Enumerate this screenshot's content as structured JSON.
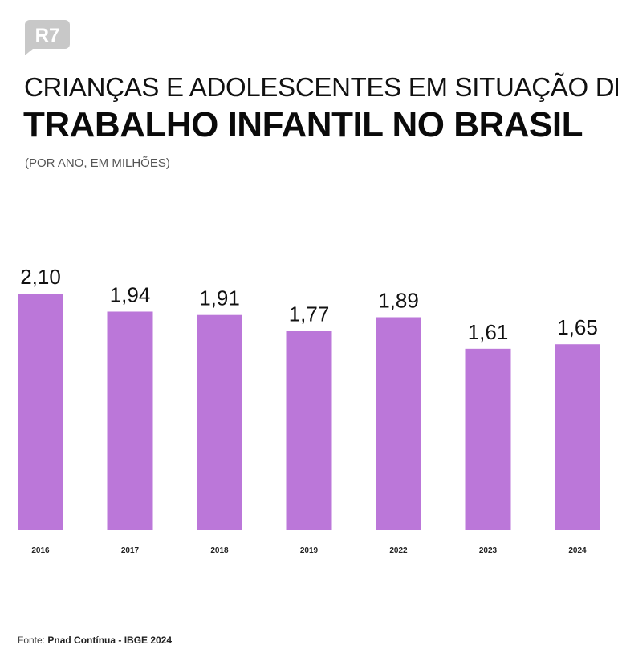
{
  "brand": {
    "logo_text": "R7",
    "logo_color": "#c8c8c8"
  },
  "title_line1": "CRIANÇAS E ADOLESCENTES EM SITUAÇÃO DE",
  "title_line2": "TRABALHO INFANTIL NO BRASIL",
  "subtitle": "(POR ANO, EM MILHÕES)",
  "source": {
    "label": "Fonte:",
    "text": "Pnad Contínua - IBGE 2024"
  },
  "chart_data": {
    "type": "bar",
    "categories": [
      "2016",
      "2017",
      "2018",
      "2019",
      "2022",
      "2023",
      "2024"
    ],
    "values": [
      2.1,
      1.94,
      1.91,
      1.77,
      1.89,
      1.61,
      1.65
    ],
    "value_labels": [
      "2,10",
      "1,94",
      "1,91",
      "1,77",
      "1,89",
      "1,61",
      "1,65"
    ],
    "ylim": [
      0,
      2.1
    ],
    "bar_color": "#bb77d9",
    "grid": false,
    "legend": "none"
  }
}
